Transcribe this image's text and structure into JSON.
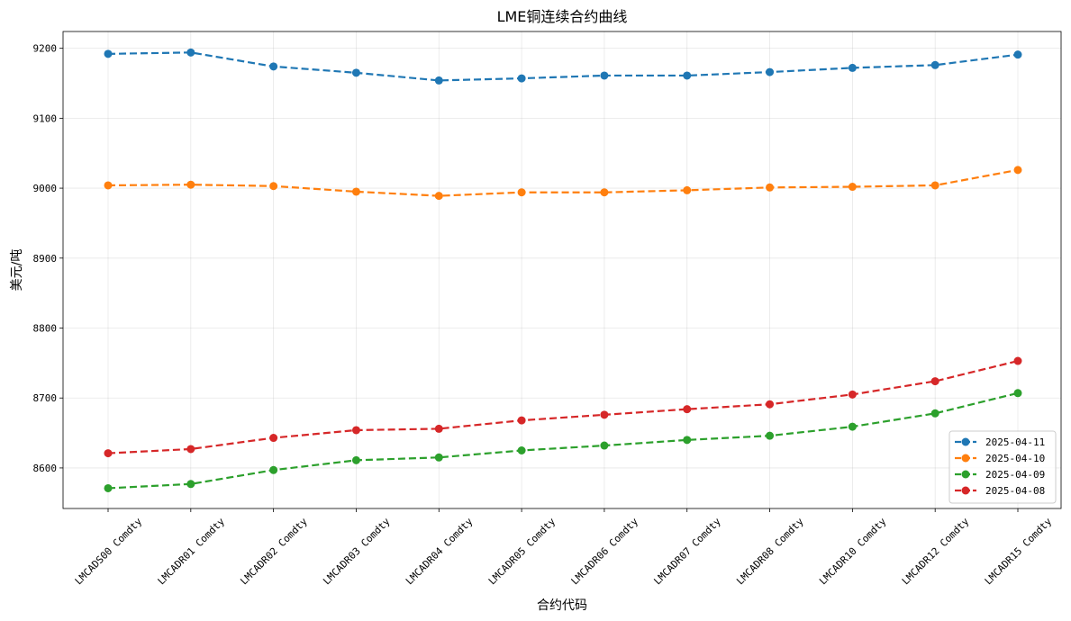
{
  "chart_data": {
    "type": "line",
    "title": "LME铜连续合约曲线",
    "xlabel": "合约代码",
    "ylabel": "美元/吨",
    "categories": [
      "LMCADS00 Comdty",
      "LMCADR01 Comdty",
      "LMCADR02 Comdty",
      "LMCADR03 Comdty",
      "LMCADR04 Comdty",
      "LMCADR05 Comdty",
      "LMCADR06 Comdty",
      "LMCADR07 Comdty",
      "LMCADR08 Comdty",
      "LMCADR10 Comdty",
      "LMCADR12 Comdty",
      "LMCADR15 Comdty"
    ],
    "ylim": [
      8542,
      9224
    ],
    "yticks": [
      8600,
      8700,
      8800,
      8900,
      9000,
      9100,
      9200
    ],
    "grid": true,
    "legend_position": "lower-right",
    "line_style": "dashed",
    "marker": "circle",
    "series": [
      {
        "name": "2025-04-11",
        "color": "#1f77b4",
        "values": [
          9192,
          9194,
          9174,
          9165,
          9154,
          9157,
          9161,
          9161,
          9166,
          9172,
          9176,
          9191
        ]
      },
      {
        "name": "2025-04-10",
        "color": "#ff7f0e",
        "values": [
          9004,
          9005,
          9003,
          8995,
          8989,
          8994,
          8994,
          8997,
          9001,
          9002,
          9004,
          9026
        ]
      },
      {
        "name": "2025-04-09",
        "color": "#2ca02c",
        "values": [
          8571,
          8577,
          8597,
          8611,
          8615,
          8625,
          8632,
          8640,
          8646,
          8659,
          8678,
          8707
        ]
      },
      {
        "name": "2025-04-08",
        "color": "#d62728",
        "values": [
          8621,
          8627,
          8643,
          8654,
          8656,
          8668,
          8676,
          8684,
          8691,
          8705,
          8724,
          8753
        ]
      }
    ]
  }
}
